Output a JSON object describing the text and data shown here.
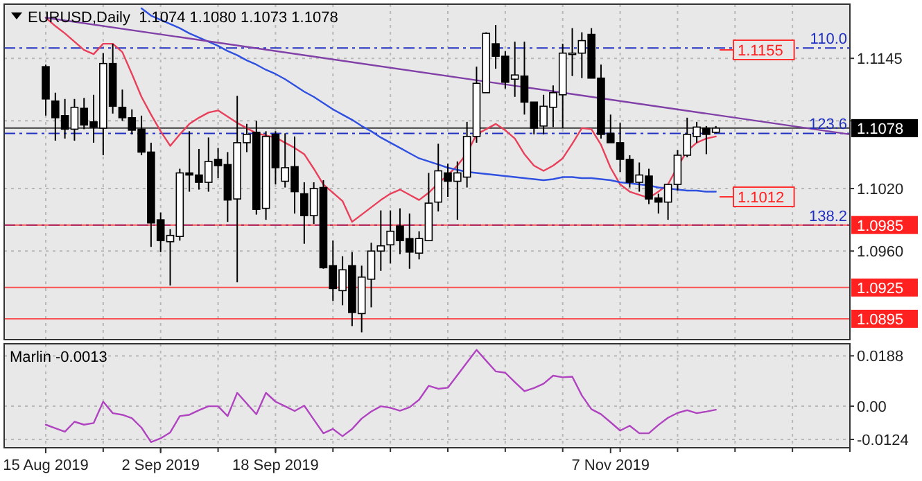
{
  "chart_data": [
    {
      "type": "candlestick",
      "title": "EURUSD,Daily  1.1074 1.1080 1.1073 1.1078",
      "tick_labels": "y",
      "grid": true,
      "categories": [
        null,
        null,
        null,
        null,
        null,
        null,
        null,
        null,
        null,
        null,
        null,
        null,
        null,
        null,
        null,
        null,
        null,
        null,
        null,
        null,
        null,
        null,
        null,
        null,
        null,
        null,
        null,
        null,
        null,
        null,
        null,
        null,
        null,
        null,
        null,
        null,
        null,
        null,
        null,
        null,
        null,
        null,
        null,
        null,
        null,
        null,
        null,
        null,
        null,
        null,
        null,
        null,
        null,
        null,
        null,
        null,
        null,
        null,
        null,
        null,
        null,
        null,
        null,
        null,
        null,
        null,
        null,
        null,
        null,
        null,
        null,
        null,
        null,
        null,
        null,
        null,
        null,
        null,
        null,
        null,
        null,
        null,
        null,
        null,
        null
      ],
      "ylim": [
        1.0875,
        1.1197
      ],
      "yticks": [
        1.1145,
        {
          "value": 1.1085,
          "label": null
        },
        {
          "value": 1.102,
          "label": "1.1020"
        },
        {
          "value": 1.096,
          "label": "1.0960"
        }
      ],
      "ohlc": [
        [
          1.1137,
          1.1139,
          1.109,
          1.1106
        ],
        [
          1.1104,
          1.1112,
          1.1066,
          1.1088
        ],
        [
          1.109,
          1.1106,
          1.1068,
          1.1077
        ],
        [
          1.1077,
          1.1106,
          1.1066,
          1.1098
        ],
        [
          1.1097,
          1.1107,
          1.1077,
          1.1081
        ],
        [
          1.1084,
          1.111,
          1.1064,
          1.1079
        ],
        [
          1.1078,
          1.115,
          1.1052,
          1.114
        ],
        [
          1.114,
          1.1159,
          1.1092,
          1.1099
        ],
        [
          1.1098,
          1.1115,
          1.1085,
          1.1088
        ],
        [
          1.1088,
          1.1096,
          1.1072,
          1.1076
        ],
        [
          1.1077,
          1.109,
          1.1052,
          1.1055
        ],
        [
          1.1055,
          1.1064,
          1.0964,
          1.0987
        ],
        [
          1.099,
          1.0997,
          1.0959,
          1.097
        ],
        [
          1.0969,
          1.0981,
          1.0927,
          1.0975
        ],
        [
          1.0974,
          1.1039,
          1.097,
          1.1035
        ],
        [
          1.1035,
          1.1075,
          1.1017,
          1.1033
        ],
        [
          1.1033,
          1.1058,
          1.1019,
          1.1026
        ],
        [
          1.1026,
          1.1069,
          1.1017,
          1.1046
        ],
        [
          1.1048,
          1.1059,
          1.103,
          1.1042
        ],
        [
          1.1043,
          1.1055,
          1.0988,
          1.1009
        ],
        [
          1.101,
          1.1109,
          1.093,
          1.1064
        ],
        [
          1.1064,
          1.1082,
          1.1055,
          1.1072
        ],
        [
          1.1074,
          1.1085,
          1.0995,
          1.1
        ],
        [
          1.1001,
          1.1075,
          1.099,
          1.107
        ],
        [
          1.1072,
          1.1075,
          1.1024,
          1.104
        ],
        [
          1.1027,
          1.1073,
          1.1021,
          1.104
        ],
        [
          1.1041,
          1.107,
          1.0996,
          1.1017
        ],
        [
          1.1015,
          1.1026,
          1.0967,
          1.0994
        ],
        [
          1.0994,
          1.1026,
          1.0986,
          1.102
        ],
        [
          1.1021,
          1.1028,
          1.0943,
          1.0944
        ],
        [
          1.0946,
          1.097,
          1.0912,
          1.0924
        ],
        [
          1.0922,
          1.0955,
          1.0908,
          1.0942
        ],
        [
          1.0946,
          1.0959,
          1.0888,
          1.0901
        ],
        [
          1.09,
          1.0946,
          1.0882,
          1.0935
        ],
        [
          1.0933,
          1.0968,
          1.0906,
          1.096
        ],
        [
          1.096,
          1.0999,
          1.0941,
          1.0965
        ],
        [
          1.0966,
          1.0999,
          1.0948,
          1.0979
        ],
        [
          1.0984,
          1.1001,
          1.0957,
          1.097
        ],
        [
          1.0972,
          1.0996,
          1.0943,
          1.0959
        ],
        [
          1.0958,
          1.0979,
          1.0952,
          1.0972
        ],
        [
          1.097,
          1.1035,
          1.097,
          1.1006
        ],
        [
          1.1007,
          1.1063,
          1.0998,
          1.1037
        ],
        [
          1.1035,
          1.1044,
          1.1012,
          1.1027
        ],
        [
          1.1027,
          1.1046,
          1.099,
          1.1035
        ],
        [
          1.1031,
          1.1084,
          1.1021,
          1.107
        ],
        [
          1.107,
          1.1137,
          1.1064,
          1.1121
        ],
        [
          1.1112,
          1.117,
          1.1112,
          1.1169
        ],
        [
          1.1159,
          1.1177,
          1.1135,
          1.1147
        ],
        [
          1.1147,
          1.1152,
          1.1116,
          1.1122
        ],
        [
          1.1125,
          1.1161,
          1.1108,
          1.1129
        ],
        [
          1.1128,
          1.1161,
          1.1091,
          1.1103
        ],
        [
          1.1103,
          1.1103,
          1.1072,
          1.1078
        ],
        [
          1.108,
          1.111,
          1.1072,
          1.1099
        ],
        [
          1.1098,
          1.1119,
          1.1079,
          1.1112
        ],
        [
          1.111,
          1.1159,
          1.1078,
          1.115
        ],
        [
          1.1149,
          1.1174,
          1.1128,
          1.115
        ],
        [
          1.115,
          1.117,
          1.1126,
          1.1162
        ],
        [
          1.1168,
          1.1174,
          1.1126,
          1.1126
        ],
        [
          1.1126,
          1.1139,
          1.1068,
          1.1072
        ],
        [
          1.1073,
          1.1091,
          1.1064,
          1.1064
        ],
        [
          1.1064,
          1.1083,
          1.1036,
          1.1048
        ],
        [
          1.1048,
          1.1052,
          1.1021,
          1.1026
        ],
        [
          1.1026,
          1.1045,
          1.1017,
          1.1033
        ],
        [
          1.1032,
          1.1039,
          1.1005,
          1.101
        ],
        [
          1.1011,
          1.1015,
          1.0996,
          1.1007
        ],
        [
          1.1007,
          1.1024,
          1.099,
          1.1024
        ],
        [
          1.1024,
          1.1057,
          1.1018,
          1.1052
        ],
        [
          1.1052,
          1.1088,
          1.105,
          1.1072
        ],
        [
          1.107,
          1.1084,
          1.1064,
          1.1079
        ],
        [
          1.1078,
          1.108,
          1.1053,
          1.1072
        ],
        [
          1.1074,
          1.108,
          1.1073,
          1.1078
        ],
        null,
        null,
        null,
        null,
        null,
        null,
        null,
        null,
        null,
        null,
        null,
        null,
        null,
        null
      ],
      "series": [
        {
          "type": "line",
          "color": "#e8405a",
          "values": [
            1.1184,
            1.1176,
            1.1169,
            1.1161,
            1.1153,
            1.1149,
            1.1159,
            1.1159,
            1.1151,
            1.113,
            1.1108,
            1.1091,
            1.1075,
            1.1061,
            1.1072,
            1.1082,
            1.1088,
            1.1093,
            1.1095,
            1.1089,
            1.1083,
            1.1078,
            1.1073,
            1.1071,
            1.1069,
            1.1064,
            1.1059,
            1.1053,
            1.1039,
            1.1024,
            1.1016,
            1.1008,
            1.0988,
            1.0995,
            1.1002,
            1.1009,
            1.1015,
            1.1019,
            1.1014,
            1.1009,
            1.1016,
            1.1025,
            1.1033,
            1.1042,
            1.1054,
            1.1072,
            1.1077,
            1.1082,
            1.1076,
            1.1068,
            1.1053,
            1.1042,
            1.1037,
            1.1042,
            1.1049,
            1.1063,
            1.1078,
            1.1077,
            1.1062,
            1.104,
            1.1024,
            1.1017,
            1.1014,
            1.1011,
            1.1017,
            1.1024,
            1.1041,
            1.1056,
            1.1064,
            1.1068,
            1.107,
            null,
            null,
            null,
            null,
            null,
            null,
            null,
            null,
            null,
            null,
            null,
            null,
            null,
            null
          ]
        },
        {
          "type": "line",
          "color": "#3050e0",
          "values": [
            null,
            null,
            null,
            null,
            null,
            null,
            null,
            null,
            null,
            null,
            1.1193,
            1.1186,
            1.1182,
            1.1178,
            1.1174,
            1.1169,
            1.1165,
            1.1161,
            1.1157,
            1.1152,
            1.1148,
            1.1143,
            1.1139,
            1.1134,
            1.113,
            1.1125,
            1.1119,
            1.1113,
            1.1108,
            1.1102,
            1.1096,
            1.1091,
            1.1086,
            1.108,
            1.1075,
            1.1069,
            1.1064,
            1.1059,
            1.1054,
            1.1049,
            1.1046,
            1.1043,
            1.104,
            1.1038,
            1.1036,
            1.1035,
            1.1034,
            1.1033,
            1.1032,
            1.1031,
            1.103,
            1.1029,
            1.1028,
            1.1029,
            1.1031,
            1.1031,
            1.103,
            1.103,
            1.1029,
            1.1028,
            1.1026,
            1.1025,
            1.1024,
            1.1023,
            1.1021,
            1.102,
            1.1019,
            1.1018,
            1.1018,
            1.1017,
            1.1017,
            null,
            null,
            null,
            null,
            null,
            null,
            null,
            null,
            null,
            null,
            null,
            null,
            null,
            null
          ]
        },
        {
          "type": "line",
          "color": "#8040a8",
          "values": [
            1.1184,
            null,
            null,
            null,
            null,
            null,
            null,
            null,
            null,
            null,
            null,
            null,
            null,
            null,
            null,
            null,
            null,
            null,
            null,
            null,
            null,
            null,
            null,
            null,
            null,
            null,
            null,
            null,
            null,
            null,
            null,
            null,
            null,
            null,
            null,
            null,
            null,
            null,
            null,
            null,
            null,
            null,
            null,
            null,
            null,
            null,
            null,
            null,
            null,
            null,
            null,
            null,
            null,
            null,
            null,
            null,
            null,
            null,
            null,
            null,
            null,
            null,
            null,
            null,
            null,
            null,
            null,
            null,
            null,
            null,
            null,
            null,
            null,
            null,
            null,
            null,
            null,
            null,
            null,
            null,
            null,
            null,
            null,
            null,
            1.1072
          ]
        }
      ],
      "ref_lines": [
        {
          "axis": "y",
          "value": 1.1155,
          "color": "#2030c0",
          "line_style": "dashed"
        },
        {
          "axis": "y",
          "value": 1.1073,
          "color": "#2030c0",
          "line_style": "dashed"
        },
        {
          "axis": "y",
          "value": 1.0985,
          "color": "#2030c0",
          "line_style": "dashed"
        },
        {
          "axis": "y",
          "value": 1.1078,
          "label": "1.1078",
          "color": "#000000",
          "line_style": "solid"
        },
        {
          "axis": "y",
          "value": 1.0985,
          "label": "1.0985",
          "color": "#ff2020",
          "line_style": "solid"
        },
        {
          "axis": "y",
          "value": 1.0925,
          "label": "1.0925",
          "color": "#ff2020",
          "line_style": "solid"
        },
        {
          "axis": "y",
          "value": 1.0895,
          "label": "1.0895",
          "color": "#ff2020",
          "line_style": "solid"
        }
      ],
      "annotations": [
        "1.1155",
        "1.1012",
        {
          "text": "110.0",
          "y": 1.1155
        },
        {
          "text": "123.6",
          "y": 1.1073
        },
        {
          "text": "138.2",
          "y": 1.0985
        }
      ]
    },
    {
      "type": "line",
      "title": "Marlin -0.0013",
      "grid": true,
      "categories": [
        "15 Aug 2019",
        null,
        null,
        null,
        null,
        null,
        null,
        null,
        null,
        null,
        null,
        null,
        "2 Sep 2019",
        null,
        null,
        null,
        null,
        null,
        null,
        null,
        null,
        null,
        null,
        null,
        "18 Sep 2019",
        null,
        null,
        null,
        null,
        null,
        null,
        null,
        null,
        null,
        null,
        null,
        null,
        null,
        null,
        null,
        null,
        null,
        null,
        null,
        null,
        null,
        null,
        null,
        null,
        null,
        null,
        null,
        null,
        null,
        null,
        null,
        null,
        null,
        null,
        "7 Nov 2019",
        null,
        null,
        null,
        null,
        null,
        null,
        null,
        null,
        null,
        null,
        null,
        null,
        null,
        null,
        null,
        null,
        null,
        null,
        null,
        null,
        null,
        null,
        null,
        null,
        null
      ],
      "ylim": [
        -0.0155,
        0.0233
      ],
      "yticks": [
        0.0188,
        {
          "value": 0,
          "label": "0.00"
        },
        -0.0124
      ],
      "series": [
        {
          "color": "#b044c0",
          "values": [
            -0.0069,
            -0.0082,
            -0.0095,
            -0.0058,
            -0.0069,
            -0.0063,
            0.0017,
            -0.0026,
            -0.0032,
            -0.0045,
            -0.008,
            -0.0134,
            -0.012,
            -0.0098,
            -0.0037,
            -0.0032,
            -0.0015,
            0,
            0,
            -0.0037,
            0.005,
            0.001,
            -0.003,
            0.005,
            0.0017,
            0,
            -0.0018,
            0.0002,
            -0.005,
            -0.0101,
            -0.0085,
            -0.0112,
            -0.0085,
            -0.0046,
            -0.002,
            0,
            -0.0006,
            -0.0017,
            -0.0004,
            0.0024,
            0.0076,
            0.0065,
            0.0069,
            0.0116,
            0.0163,
            0.021,
            0.017,
            0.013,
            0.0125,
            0.009,
            0.0056,
            0.0068,
            0.0084,
            0.0114,
            0.0108,
            0.011,
            0.004,
            -0.0011,
            -0.003,
            -0.006,
            -0.0091,
            -0.0073,
            -0.0101,
            -0.0101,
            -0.007,
            -0.0043,
            -0.0025,
            -0.0015,
            -0.0026,
            -0.002,
            -0.0013,
            null,
            null,
            null,
            null,
            null,
            null,
            null,
            null,
            null,
            null,
            null,
            null,
            null,
            null
          ]
        }
      ]
    }
  ]
}
